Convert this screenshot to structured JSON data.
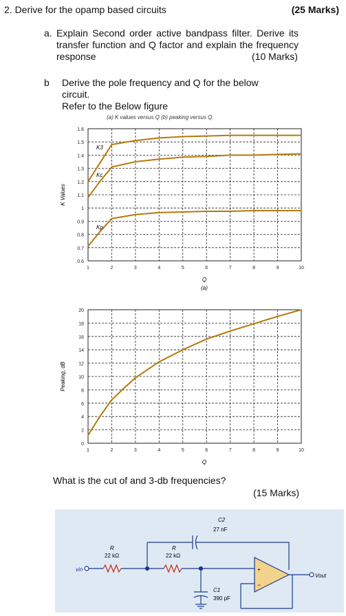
{
  "question": {
    "number": "2. Derive for the opamp based circuits",
    "marks": "(25 Marks)",
    "part_a_label": "a.",
    "part_a_text": "Explain Second order active bandpass filter. Derive its transfer function and Q factor and explain the frequency response",
    "part_a_marks": "(10 Marks)",
    "part_b_label": "b",
    "part_b_text": "Derive the pole frequency and Q for the below circuit.",
    "part_b_ref": "Refer to the Below figure",
    "figure_caption": "(a) K values versus Q (b) peaking versus Q.",
    "part_c_text": "What is the cut of and 3-db frequencies?",
    "part_c_marks": "(15 Marks)"
  },
  "chart_data": [
    {
      "type": "line",
      "xlabel": "Q",
      "ylabel": "K Values",
      "sublabel": "(a)",
      "xlim": [
        1,
        10
      ],
      "ylim": [
        0.6,
        1.6
      ],
      "xticks": [
        "1",
        "2",
        "3",
        "4",
        "5",
        "6",
        "7",
        "8",
        "9",
        "10"
      ],
      "yticks": [
        "0.6",
        "0.7",
        "0.8",
        "0.9",
        "1",
        "1.1",
        "1.2",
        "1.3",
        "1.4",
        "1.5",
        "1.6"
      ],
      "grid": true,
      "series": [
        {
          "name": "K3",
          "x": [
            1,
            1.5,
            2,
            3,
            4,
            5,
            6,
            7,
            8,
            9,
            10
          ],
          "values": [
            1.2,
            1.34,
            1.48,
            1.51,
            1.53,
            1.54,
            1.545,
            1.55,
            1.55,
            1.55,
            1.55
          ]
        },
        {
          "name": "Kc",
          "x": [
            1,
            1.5,
            2,
            3,
            4,
            5,
            6,
            7,
            8,
            9,
            10
          ],
          "values": [
            1.08,
            1.2,
            1.31,
            1.35,
            1.37,
            1.385,
            1.39,
            1.4,
            1.4,
            1.405,
            1.41
          ]
        },
        {
          "name": "Kp",
          "x": [
            1,
            1.5,
            2,
            3,
            4,
            5,
            6,
            7,
            8,
            9,
            10
          ],
          "values": [
            0.71,
            0.82,
            0.92,
            0.95,
            0.965,
            0.97,
            0.975,
            0.975,
            0.98,
            0.98,
            0.98
          ]
        }
      ]
    },
    {
      "type": "line",
      "xlabel": "Q",
      "ylabel": "Peaking, dB",
      "xlim": [
        1,
        10
      ],
      "ylim": [
        0,
        20
      ],
      "xticks": [
        "1",
        "2",
        "3",
        "4",
        "5",
        "6",
        "7",
        "8",
        "9",
        "10"
      ],
      "yticks": [
        "0",
        "2",
        "4",
        "6",
        "8",
        "10",
        "12",
        "14",
        "16",
        "18",
        "20"
      ],
      "grid": true,
      "series": [
        {
          "name": "Peaking",
          "x": [
            1,
            1.5,
            2,
            2.5,
            3,
            3.5,
            4,
            5,
            6,
            7,
            8,
            9,
            10
          ],
          "values": [
            1.2,
            4.0,
            6.5,
            8.2,
            9.8,
            11.0,
            12.2,
            14.0,
            15.6,
            16.8,
            17.9,
            19.0,
            20.0
          ]
        }
      ]
    }
  ],
  "circuit": {
    "vin": "vin",
    "r1_label": "R",
    "r1_value": "22 kΩ",
    "r2_label": "R",
    "r2_value": "22 kΩ",
    "c2_label": "C2",
    "c2_value": "27 nF",
    "c1_label": "C1",
    "c1_value": "390 pF",
    "vout": "Vout",
    "plus": "+",
    "minus": "−"
  }
}
